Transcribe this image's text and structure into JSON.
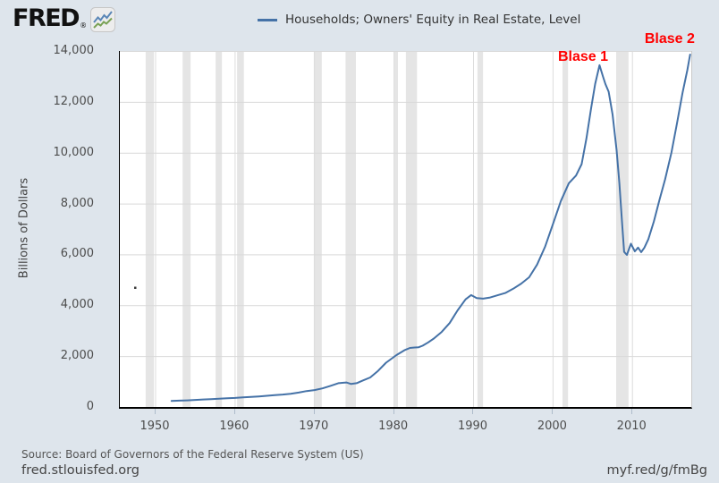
{
  "header": {
    "logo_text": "FRED",
    "registered_mark": "®"
  },
  "legend": {
    "label": "Households; Owners' Equity in Real Estate, Level"
  },
  "footer": {
    "source_note": "Source: Board of Governors of the Federal Reserve System (US)",
    "site_url": "fred.stlouisfed.org",
    "short_url": "myf.red/g/fmBg"
  },
  "colors": {
    "background": "#dee5ec",
    "plot_background": "#ffffff",
    "gridline": "#d9d9d9",
    "vertical_gridline": "#dcdcdc",
    "recession_band": "#e5e5e5",
    "axis_line": "#000000",
    "tick_label": "#4d4d4d",
    "series_line": "#4572a7",
    "annotation_red": "#ff0000"
  },
  "chart_data": {
    "type": "line",
    "title": "Households; Owners' Equity in Real Estate, Level",
    "xlabel": "",
    "ylabel": "Billions of Dollars",
    "xlim": [
      1945.5,
      2017.4
    ],
    "ylim": [
      0,
      14000
    ],
    "x_ticks": [
      1950,
      1960,
      1970,
      1980,
      1990,
      2000,
      2010
    ],
    "y_ticks": [
      0,
      2000,
      4000,
      6000,
      8000,
      10000,
      12000,
      14000
    ],
    "grid": true,
    "legend_position": "top-center",
    "line_color": "#4572a7",
    "series": [
      {
        "name": "Households; Owners' Equity in Real Estate, Level",
        "units": "Billions of Dollars",
        "points": [
          [
            1952.0,
            240
          ],
          [
            1953.0,
            250
          ],
          [
            1954.0,
            262
          ],
          [
            1955.0,
            278
          ],
          [
            1956.0,
            295
          ],
          [
            1957.0,
            308
          ],
          [
            1958.0,
            322
          ],
          [
            1959.0,
            340
          ],
          [
            1960.0,
            355
          ],
          [
            1961.0,
            375
          ],
          [
            1962.0,
            395
          ],
          [
            1963.0,
            415
          ],
          [
            1964.0,
            440
          ],
          [
            1965.0,
            465
          ],
          [
            1966.0,
            490
          ],
          [
            1967.0,
            520
          ],
          [
            1968.0,
            565
          ],
          [
            1969.0,
            625
          ],
          [
            1970.0,
            665
          ],
          [
            1971.0,
            730
          ],
          [
            1972.0,
            830
          ],
          [
            1973.0,
            935
          ],
          [
            1974.0,
            965
          ],
          [
            1974.6,
            905
          ],
          [
            1975.3,
            935
          ],
          [
            1976.0,
            1030
          ],
          [
            1977.0,
            1160
          ],
          [
            1978.0,
            1420
          ],
          [
            1979.0,
            1740
          ],
          [
            1980.3,
            2040
          ],
          [
            1981.3,
            2230
          ],
          [
            1982.0,
            2320
          ],
          [
            1982.6,
            2340
          ],
          [
            1983.1,
            2350
          ],
          [
            1983.6,
            2410
          ],
          [
            1984.3,
            2540
          ],
          [
            1985.0,
            2690
          ],
          [
            1986.0,
            2950
          ],
          [
            1987.0,
            3300
          ],
          [
            1988.0,
            3800
          ],
          [
            1989.0,
            4230
          ],
          [
            1989.7,
            4400
          ],
          [
            1990.4,
            4280
          ],
          [
            1991.2,
            4260
          ],
          [
            1992.0,
            4300
          ],
          [
            1993.0,
            4390
          ],
          [
            1994.0,
            4480
          ],
          [
            1995.0,
            4650
          ],
          [
            1996.0,
            4850
          ],
          [
            1997.0,
            5100
          ],
          [
            1998.0,
            5600
          ],
          [
            1999.0,
            6300
          ],
          [
            2000.0,
            7200
          ],
          [
            2001.0,
            8100
          ],
          [
            2002.0,
            8800
          ],
          [
            2002.9,
            9100
          ],
          [
            2003.6,
            9550
          ],
          [
            2004.2,
            10550
          ],
          [
            2004.8,
            11750
          ],
          [
            2005.3,
            12700
          ],
          [
            2005.85,
            13440
          ],
          [
            2006.3,
            12980
          ],
          [
            2006.6,
            12700
          ],
          [
            2007.0,
            12400
          ],
          [
            2007.5,
            11500
          ],
          [
            2008.0,
            10100
          ],
          [
            2008.35,
            8800
          ],
          [
            2008.7,
            7200
          ],
          [
            2008.95,
            6100
          ],
          [
            2009.3,
            5980
          ],
          [
            2009.8,
            6420
          ],
          [
            2010.3,
            6120
          ],
          [
            2010.7,
            6270
          ],
          [
            2011.1,
            6090
          ],
          [
            2011.5,
            6270
          ],
          [
            2012.0,
            6600
          ],
          [
            2012.7,
            7300
          ],
          [
            2013.4,
            8150
          ],
          [
            2014.1,
            8950
          ],
          [
            2014.9,
            10000
          ],
          [
            2015.6,
            11150
          ],
          [
            2016.3,
            12350
          ],
          [
            2016.9,
            13250
          ],
          [
            2017.25,
            13860
          ]
        ]
      }
    ],
    "recession_bands": [
      [
        1948.75,
        1949.8
      ],
      [
        1953.4,
        1954.4
      ],
      [
        1957.55,
        1958.35
      ],
      [
        1960.25,
        1961.1
      ],
      [
        1969.9,
        1970.9
      ],
      [
        1973.9,
        1975.2
      ],
      [
        1980.0,
        1980.5
      ],
      [
        1981.5,
        1982.9
      ],
      [
        1990.5,
        1991.2
      ],
      [
        2001.2,
        2001.9
      ],
      [
        2007.95,
        2009.5
      ]
    ],
    "annotations": [
      {
        "text": "Blase 1",
        "year": 2003.9,
        "value": 13750,
        "color": "#ff0000"
      },
      {
        "text": "Blase 2",
        "year": 2014.8,
        "value": 14460,
        "color": "#ff0000"
      }
    ],
    "artifact_dot": {
      "year": 1947.3,
      "value": 4730
    }
  }
}
